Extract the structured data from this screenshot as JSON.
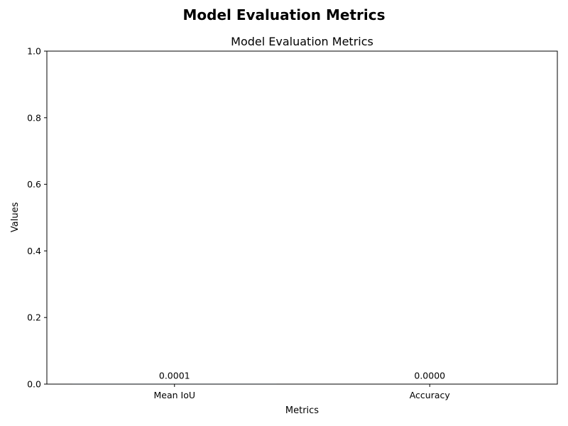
{
  "figure": {
    "suptitle": "Model Evaluation Metrics"
  },
  "chart_data": {
    "type": "bar",
    "title": "Model Evaluation Metrics",
    "xlabel": "Metrics",
    "ylabel": "Values",
    "categories": [
      "Mean IoU",
      "Accuracy"
    ],
    "values": [
      0.0001,
      0.0
    ],
    "data_labels": [
      "0.0001",
      "0.0000"
    ],
    "ylim": [
      0,
      1
    ],
    "yticks": [
      0.0,
      0.2,
      0.4,
      0.6,
      0.8,
      1.0
    ],
    "ytick_labels": [
      "0.0",
      "0.2",
      "0.4",
      "0.6",
      "0.8",
      "1.0"
    ],
    "grid": false,
    "legend": "none",
    "bar_color": "#1f77b4"
  }
}
